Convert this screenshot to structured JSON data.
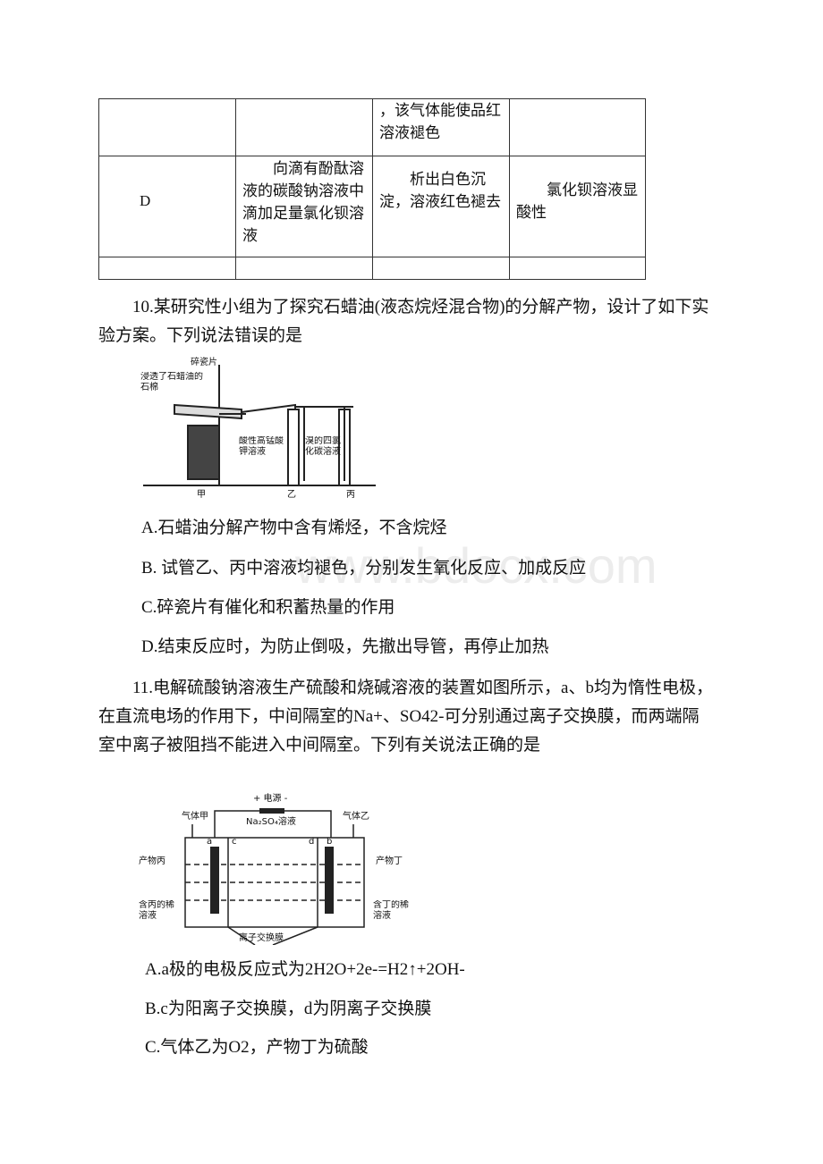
{
  "table": {
    "rows": [
      {
        "2": "，该气体能使品红溶液褪色"
      },
      {
        "0": "D",
        "1": "向滴有酚酞溶液的碳酸钠溶液中滴加足量氯化钡溶液",
        "2": "析出白色沉淀，溶液红色褪去",
        "3": "氯化钡溶液显酸性"
      }
    ]
  },
  "questions": [
    {
      "stem": "10.某研究性小组为了探究石蜡油(液态烷烃混合物)的分解产物，设计了如下实验方案。下列说法错误的是",
      "figure": {
        "labels": [
          "碎瓷片",
          "浸透了石蜡油的石棉",
          "酸性高锰酸钾溶液",
          "溴的四氯化碳溶液",
          "甲",
          "乙",
          "丙"
        ]
      },
      "options": [
        "A.石蜡油分解产物中含有烯烃，不含烷烃",
        "B. 试管乙、丙中溶液均褪色，分别发生氧化反应、加成反应",
        "C.碎瓷片有催化和积蓄热量的作用",
        "D.结束反应时，为防止倒吸，先撤出导管，再停止加热"
      ]
    },
    {
      "stem": "11.电解硫酸钠溶液生产硫酸和烧碱溶液的装置如图所示，a、b均为惰性电极，在直流电场的作用下，中间隔室的Na+、SO42-可分别通过离子交换膜，而两端隔室中离子被阻挡不能进入中间隔室。下列有关说法正确的是",
      "figure": {
        "labels": [
          "+ 电源 -",
          "Na₂SO₄溶液",
          "气体甲",
          "气体乙",
          "a",
          "b",
          "c",
          "d",
          "产物丙",
          "产物丁",
          "含丙的稀溶液",
          "含丁的稀溶液",
          "离子交换膜"
        ]
      },
      "options": [
        "A.a极的电极反应式为2H2O+2e-=H2↑+2OH-",
        "B.c为阳离子交换膜，d为阴离子交换膜",
        "C.气体乙为O2，产物丁为硫酸"
      ]
    }
  ],
  "watermark": "www.bdocx.com"
}
